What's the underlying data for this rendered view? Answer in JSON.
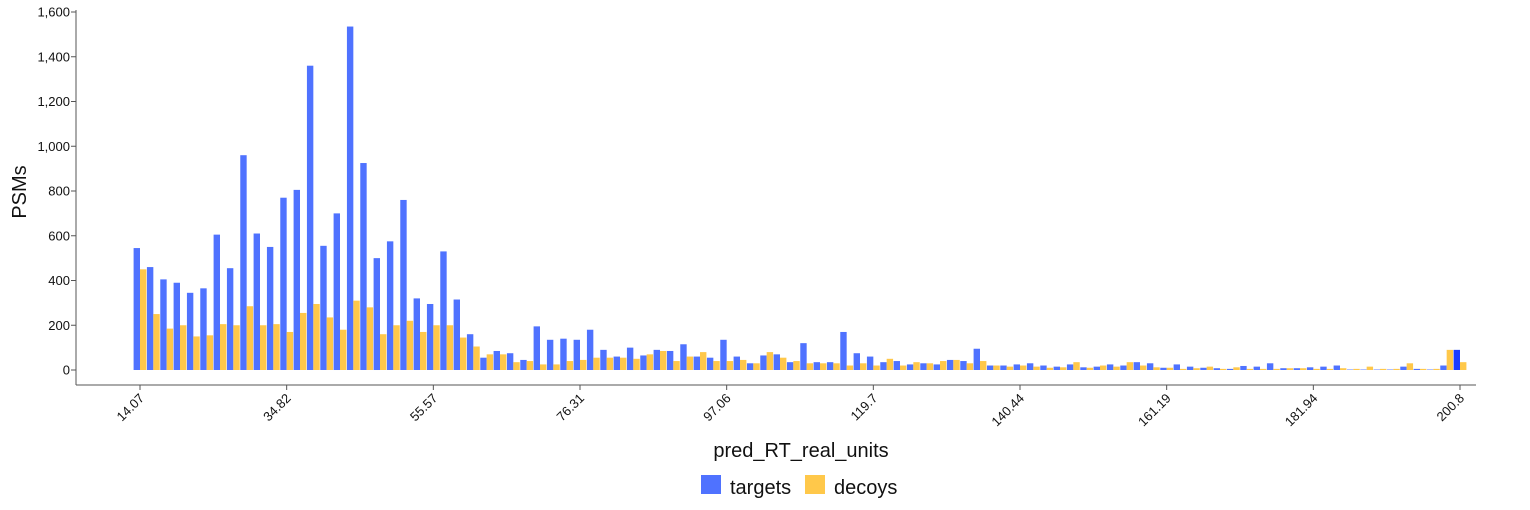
{
  "chart_data": {
    "type": "bar",
    "title": "",
    "xlabel": "pred_RT_real_units",
    "ylabel": "PSMs",
    "ylim": [
      0,
      1600
    ],
    "xlim": [
      14.07,
      200.8
    ],
    "y_ticks": [
      0,
      200,
      400,
      600,
      800,
      1000,
      1200,
      1400,
      1600
    ],
    "y_tick_labels": [
      "0",
      "200",
      "400",
      "600",
      "800",
      "1,000",
      "1,200",
      "1,400",
      "1,600"
    ],
    "x_tick_labels": [
      "14.07",
      "34.82",
      "55.57",
      "76.31",
      "97.06",
      "119.7",
      "140.44",
      "161.19",
      "181.94",
      "200.8"
    ],
    "bin_count": 100,
    "legend": [
      "targets",
      "decoys"
    ],
    "legend_position": "bottom-center",
    "series": [
      {
        "name": "targets",
        "color": "#4f72ff",
        "values": [
          545,
          460,
          405,
          390,
          345,
          365,
          605,
          455,
          960,
          610,
          550,
          770,
          805,
          1360,
          555,
          700,
          1535,
          925,
          500,
          575,
          760,
          320,
          295,
          530,
          315,
          160,
          55,
          85,
          75,
          45,
          195,
          135,
          140,
          135,
          180,
          90,
          60,
          100,
          65,
          90,
          85,
          115,
          60,
          55,
          135,
          60,
          30,
          65,
          70,
          35,
          120,
          35,
          35,
          170,
          75,
          60,
          35,
          40,
          25,
          30,
          25,
          45,
          40,
          95,
          20,
          20,
          25,
          30,
          20,
          15,
          25,
          12,
          15,
          25,
          20,
          35,
          30,
          10,
          25,
          15,
          10,
          8,
          5,
          18,
          15,
          30,
          8,
          8,
          12,
          15,
          20,
          2,
          2,
          2,
          2,
          15,
          5,
          2,
          20,
          90
        ],
        "last_bar_color": "#1a3cff"
      },
      {
        "name": "decoys",
        "color": "#ffc84a",
        "values": [
          450,
          250,
          185,
          200,
          150,
          155,
          205,
          200,
          285,
          200,
          205,
          170,
          255,
          295,
          235,
          180,
          310,
          280,
          160,
          200,
          220,
          170,
          200,
          200,
          145,
          105,
          70,
          70,
          35,
          40,
          25,
          25,
          40,
          45,
          55,
          55,
          55,
          50,
          70,
          85,
          40,
          60,
          80,
          40,
          40,
          45,
          30,
          80,
          55,
          40,
          30,
          30,
          30,
          20,
          30,
          20,
          50,
          20,
          35,
          30,
          40,
          45,
          30,
          40,
          20,
          15,
          20,
          15,
          10,
          12,
          35,
          10,
          20,
          15,
          35,
          20,
          12,
          10,
          5,
          8,
          15,
          5,
          12,
          5,
          5,
          5,
          8,
          8,
          5,
          5,
          8,
          5,
          15,
          5,
          5,
          30,
          5,
          5,
          90,
          35
        ]
      }
    ]
  }
}
